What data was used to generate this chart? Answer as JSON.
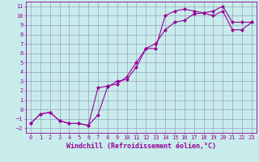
{
  "xlabel": "Windchill (Refroidissement éolien,°C)",
  "bg_color": "#c8ecec",
  "line_color": "#990099",
  "xlim": [
    -0.5,
    23.5
  ],
  "ylim": [
    -2.5,
    11.5
  ],
  "xticks": [
    0,
    1,
    2,
    3,
    4,
    5,
    6,
    7,
    8,
    9,
    10,
    11,
    12,
    13,
    14,
    15,
    16,
    17,
    18,
    19,
    20,
    21,
    22,
    23
  ],
  "yticks": [
    -2,
    -1,
    0,
    1,
    2,
    3,
    4,
    5,
    6,
    7,
    8,
    9,
    10,
    11
  ],
  "line1_x": [
    0,
    1,
    2,
    3,
    4,
    5,
    6,
    7,
    8,
    9,
    10,
    11,
    12,
    13,
    14,
    15,
    16,
    17,
    18,
    19,
    20,
    21,
    22,
    23
  ],
  "line1_y": [
    -1.5,
    -0.5,
    -0.3,
    -1.2,
    -1.5,
    -1.5,
    -1.7,
    -0.6,
    2.4,
    3.0,
    3.2,
    4.5,
    6.5,
    6.5,
    10.0,
    10.5,
    10.7,
    10.5,
    10.3,
    10.5,
    11.0,
    9.3,
    9.3,
    9.3
  ],
  "line2_x": [
    0,
    1,
    2,
    3,
    4,
    5,
    6,
    7,
    8,
    9,
    10,
    11,
    12,
    13,
    14,
    15,
    16,
    17,
    18,
    19,
    20,
    21,
    22,
    23
  ],
  "line2_y": [
    -1.5,
    -0.5,
    -0.3,
    -1.2,
    -1.5,
    -1.5,
    -1.7,
    2.3,
    2.5,
    2.7,
    3.5,
    5.0,
    6.5,
    7.0,
    8.5,
    9.3,
    9.5,
    10.2,
    10.3,
    10.0,
    10.5,
    8.5,
    8.5,
    9.3
  ],
  "grid_color": "#9090b0",
  "marker": "D",
  "markersize": 2,
  "linewidth": 0.8,
  "xlabel_fontsize": 6,
  "tick_fontsize": 5,
  "xlabel_color": "#990099",
  "tick_color": "#990099"
}
